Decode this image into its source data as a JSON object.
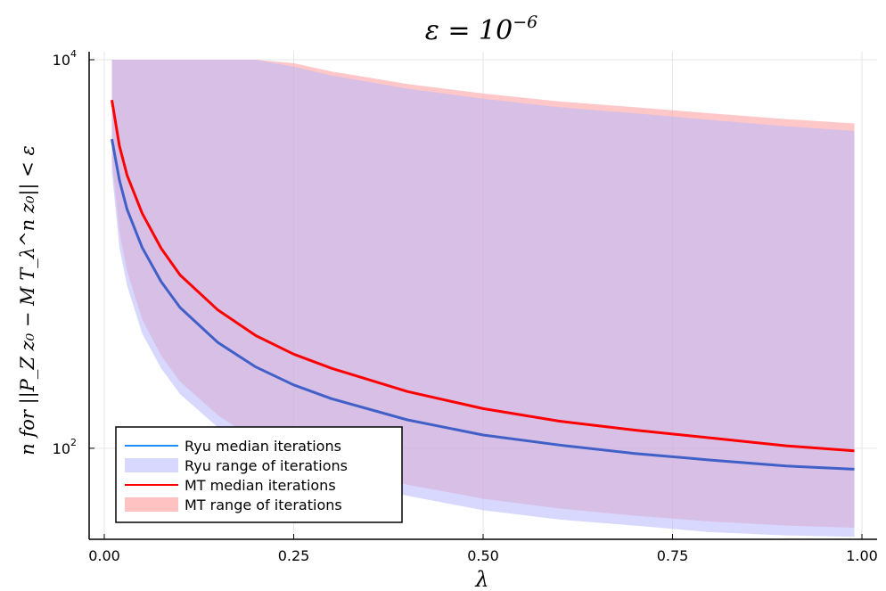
{
  "chart_data": {
    "type": "line",
    "title": "ε = 10",
    "title_sup": "−6",
    "xlabel": "λ",
    "ylabel": "n for ||P_Z z₀ − M T_λ^n z₀|| < ε",
    "x_scale": "linear",
    "y_scale": "log",
    "xlim": [
      -0.02,
      1.02
    ],
    "ylim": [
      34,
      11000
    ],
    "grid": true,
    "x_ticks": [
      {
        "value": 0.0,
        "label": "0.00"
      },
      {
        "value": 0.25,
        "label": "0.25"
      },
      {
        "value": 0.5,
        "label": "0.50"
      },
      {
        "value": 0.75,
        "label": "0.75"
      },
      {
        "value": 1.0,
        "label": "1.00"
      }
    ],
    "y_ticks": [
      {
        "value": 100,
        "base": "10",
        "exp": "2"
      },
      {
        "value": 10000,
        "base": "10",
        "exp": "4"
      }
    ],
    "legend_position": "bottom-left",
    "x": [
      0.01,
      0.02,
      0.03,
      0.05,
      0.075,
      0.1,
      0.15,
      0.2,
      0.25,
      0.3,
      0.4,
      0.5,
      0.6,
      0.7,
      0.8,
      0.9,
      0.99
    ],
    "series": [
      {
        "name": "MT range of iterations",
        "kind": "band",
        "color": "#ff9999",
        "lower": [
          3050,
          1300,
          820,
          460,
          300,
          220,
          148,
          110,
          92,
          80,
          65,
          55,
          49,
          45,
          42,
          40,
          39
        ],
        "upper": [
          10000,
          10000,
          10000,
          10000,
          10000,
          10000,
          10000,
          10000,
          9600,
          8700,
          7500,
          6700,
          6100,
          5700,
          5300,
          4950,
          4700
        ]
      },
      {
        "name": "Ryu range of iterations",
        "kind": "band",
        "color": "#b8b8ff",
        "lower": [
          2650,
          1080,
          690,
          390,
          258,
          190,
          128,
          96,
          80,
          70,
          57,
          48,
          43,
          40,
          37,
          35.6,
          35
        ],
        "upper": [
          10000,
          10000,
          10000,
          10000,
          10000,
          10000,
          10000,
          10000,
          9200,
          8300,
          7100,
          6300,
          5700,
          5300,
          4900,
          4550,
          4300
        ]
      },
      {
        "name": "MT median iterations",
        "kind": "line",
        "color": "#ff0000",
        "values": [
          6200,
          3600,
          2550,
          1620,
          1070,
          780,
          515,
          380,
          305,
          258,
          196,
          160,
          138,
          124,
          113,
          103,
          97
        ]
      },
      {
        "name": "Ryu median iterations",
        "kind": "line",
        "color": "#4060c8",
        "values": [
          3900,
          2400,
          1700,
          1080,
          720,
          530,
          350,
          262,
          212,
          180,
          140,
          117,
          104,
          94,
          87,
          81,
          78
        ]
      }
    ],
    "legend": [
      {
        "label": "Ryu median iterations",
        "type": "line",
        "color": "#1f8fff"
      },
      {
        "label": "Ryu range of iterations",
        "type": "patch",
        "color": "#d8d8ff"
      },
      {
        "label": "MT median iterations",
        "type": "line",
        "color": "#ff0000"
      },
      {
        "label": "MT range of iterations",
        "type": "patch",
        "color": "#ffc2c2"
      }
    ]
  }
}
